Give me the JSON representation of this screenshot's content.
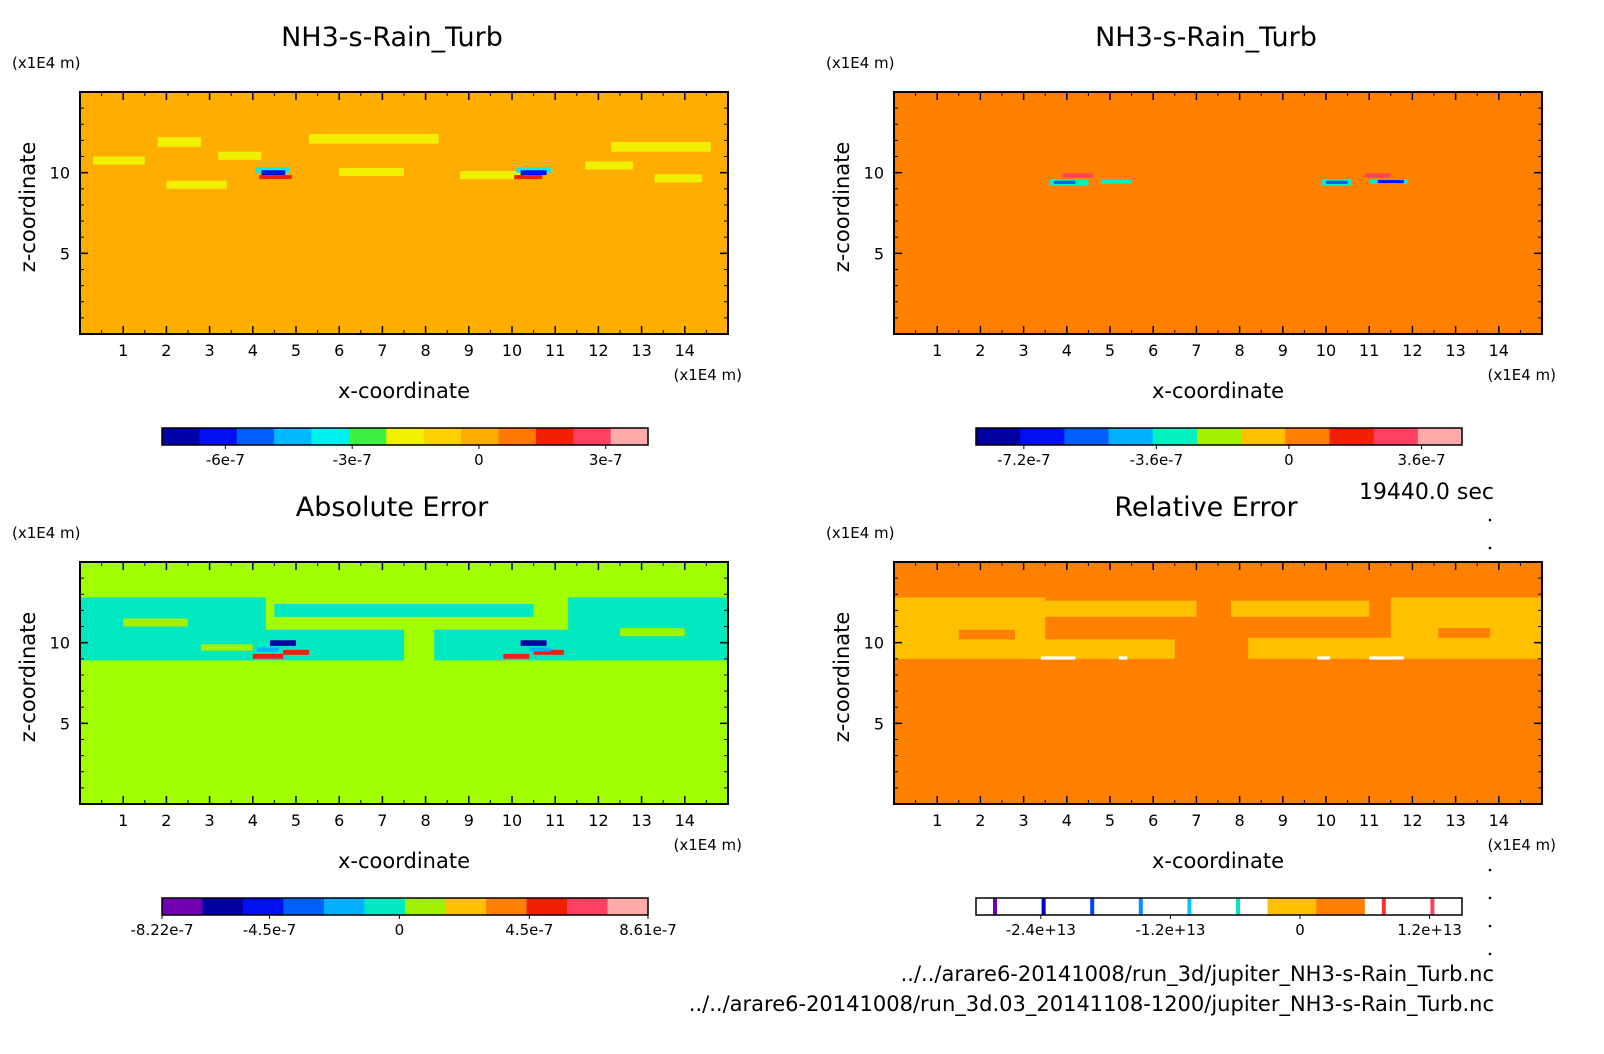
{
  "time_label": "19440.0 sec",
  "files": [
    "../../arare6-20141008/run_3d/jupiter_NH3-s-Rain_Turb.nc",
    "../../arare6-20141008/run_3d.03_20141108-1200/jupiter_NH3-s-Rain_Turb.nc"
  ],
  "chart_data": [
    {
      "type": "heatmap",
      "title": "NH3-s-Rain_Turb",
      "xlabel": "x-coordinate",
      "ylabel": "z-coordinate",
      "x_unit": "(x1E4 m)",
      "y_unit": "(x1E4 m)",
      "xlim": [
        0,
        15
      ],
      "ylim": [
        0,
        15
      ],
      "x_ticks": [
        1,
        2,
        3,
        4,
        5,
        6,
        7,
        8,
        9,
        10,
        11,
        12,
        13,
        14
      ],
      "y_ticks": [
        5,
        10
      ],
      "background_color": "#ffad00",
      "colorbar": {
        "colors": [
          "#0000a8",
          "#0010f0",
          "#0060ff",
          "#00b8ff",
          "#00f0f0",
          "#40f040",
          "#f0f000",
          "#ffd000",
          "#ffad00",
          "#ff7800",
          "#f02000",
          "#ff4060",
          "#ffaaaa"
        ],
        "tick_values": [
          -6e-07,
          -3e-07,
          0,
          3e-07
        ],
        "tick_labels": [
          "-6e-7",
          "-3e-7",
          "0",
          "3e-7"
        ],
        "range": [
          -7.5e-07,
          4e-07
        ]
      }
    },
    {
      "type": "heatmap",
      "title": "NH3-s-Rain_Turb",
      "xlabel": "x-coordinate",
      "ylabel": "z-coordinate",
      "x_unit": "(x1E4 m)",
      "y_unit": "(x1E4 m)",
      "xlim": [
        0,
        15
      ],
      "ylim": [
        0,
        15
      ],
      "x_ticks": [
        1,
        2,
        3,
        4,
        5,
        6,
        7,
        8,
        9,
        10,
        11,
        12,
        13,
        14
      ],
      "y_ticks": [
        5,
        10
      ],
      "background_color": "#ff8000",
      "colorbar": {
        "colors": [
          "#0000a0",
          "#0010f0",
          "#0060ff",
          "#00b0ff",
          "#00f0c0",
          "#a0f000",
          "#ffc000",
          "#ff8000",
          "#f02000",
          "#ff4060",
          "#ffaaaa"
        ],
        "tick_values": [
          -7.2e-07,
          -3.6e-07,
          0,
          3.6e-07
        ],
        "tick_labels": [
          "-7.2e-7",
          "-3.6e-7",
          "0",
          "3.6e-7"
        ],
        "range": [
          -8.5e-07,
          4.7e-07
        ]
      }
    },
    {
      "type": "heatmap",
      "title": "Absolute Error",
      "xlabel": "x-coordinate",
      "ylabel": "z-coordinate",
      "x_unit": "(x1E4 m)",
      "y_unit": "(x1E4 m)",
      "xlim": [
        0,
        15
      ],
      "ylim": [
        0,
        15
      ],
      "x_ticks": [
        1,
        2,
        3,
        4,
        5,
        6,
        7,
        8,
        9,
        10,
        11,
        12,
        13,
        14
      ],
      "y_ticks": [
        5,
        10
      ],
      "background_color": "#a0ff00",
      "colorbar": {
        "colors": [
          "#7000b0",
          "#0000a0",
          "#0010f0",
          "#0060ff",
          "#00b0ff",
          "#00e8c0",
          "#a0f000",
          "#ffc000",
          "#ff8000",
          "#f02000",
          "#ff4060",
          "#ffaaaa"
        ],
        "tick_values": [
          -8.22e-07,
          -4.5e-07,
          0,
          4.5e-07,
          8.61e-07
        ],
        "tick_labels": [
          "-8.22e-7",
          "-4.5e-7",
          "0",
          "4.5e-7",
          "8.61e-7"
        ],
        "range": [
          -8.22e-07,
          8.61e-07
        ]
      }
    },
    {
      "type": "heatmap",
      "title": "Relative Error",
      "xlabel": "x-coordinate",
      "ylabel": "z-coordinate",
      "x_unit": "(x1E4 m)",
      "y_unit": "(x1E4 m)",
      "xlim": [
        0,
        15
      ],
      "ylim": [
        0,
        15
      ],
      "x_ticks": [
        1,
        2,
        3,
        4,
        5,
        6,
        7,
        8,
        9,
        10,
        11,
        12,
        13,
        14
      ],
      "y_ticks": [
        5,
        10
      ],
      "background_color": "#ff8000",
      "colorbar": {
        "colors": [
          "#ffffff",
          "#ffffff",
          "#ffffff",
          "#ffffff",
          "#ffffff",
          "#ffffff",
          "#ffc000",
          "#ff8000",
          "#ffffff",
          "#ffffff"
        ],
        "marks": [
          "#7000b0",
          "#0000c0",
          "#0040ff",
          "#0090ff",
          "#00c8ff",
          "#00e8c0",
          "#ff3030",
          "#ff4060"
        ],
        "tick_values": [
          -24000000000000.0,
          -12000000000000.0,
          0,
          12000000000000.0
        ],
        "tick_labels": [
          "-2.4e+13",
          "-1.2e+13",
          "0",
          "1.2e+13"
        ],
        "range": [
          -30000000000000.0,
          15000000000000.0
        ]
      }
    }
  ]
}
